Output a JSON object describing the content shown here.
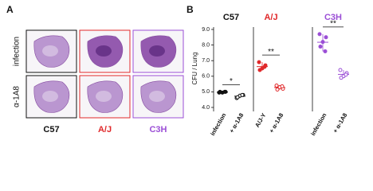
{
  "panel_a": {
    "label": "A",
    "rows": [
      "infection",
      "α-1A8"
    ],
    "columns": [
      {
        "name": "C57",
        "color": "#111111"
      },
      {
        "name": "A/J",
        "color": "#e0282a"
      },
      {
        "name": "C3H",
        "color": "#9b4fd6"
      }
    ]
  },
  "panel_b": {
    "label": "B",
    "ylabel": "CFU / Lung"
  },
  "chart_data": [
    {
      "type": "dot",
      "title": "C57",
      "color": "#111111",
      "ylim": [
        4,
        9
      ],
      "yticks": [
        {
          "value": 4,
          "label": "4.0"
        },
        {
          "value": 5,
          "label": "5.0"
        },
        {
          "value": 6,
          "label": "6.0"
        },
        {
          "value": 7,
          "label": "7.0"
        },
        {
          "value": 8,
          "label": "8.0"
        },
        {
          "value": 9,
          "label": "9.0"
        }
      ],
      "annotation": "*",
      "series": [
        {
          "name": "infection",
          "color": "#111111",
          "values": [
            4.95,
            5.0,
            4.95,
            5.0,
            5.0
          ]
        },
        {
          "name": "+ α-1A8",
          "color": "#111111",
          "values": [
            4.6,
            4.8,
            4.75,
            4.65,
            4.8
          ]
        }
      ]
    },
    {
      "type": "dot",
      "title": "A/J",
      "color": "#e0282a",
      "ylim": [
        4,
        9
      ],
      "annotation": "**",
      "series": [
        {
          "name": "A/J-Y",
          "color": "#e0282a",
          "values": [
            6.9,
            6.7,
            6.5,
            6.4,
            6.6
          ]
        },
        {
          "name": "+ α-1A8",
          "color": "#e0282a",
          "values": [
            5.4,
            5.2,
            5.3,
            5.15,
            5.35
          ]
        }
      ]
    },
    {
      "type": "dot",
      "title": "C3H",
      "color": "#9b4fd6",
      "ylim": [
        4,
        9
      ],
      "annotation": "**",
      "series": [
        {
          "name": "infection",
          "color": "#9b4fd6",
          "values": [
            8.7,
            8.5,
            8.2,
            7.9,
            7.6
          ]
        },
        {
          "name": "+ α-1A8",
          "color": "#9b4fd6",
          "values": [
            6.4,
            6.2,
            6.0,
            5.9,
            6.1
          ]
        }
      ]
    }
  ]
}
